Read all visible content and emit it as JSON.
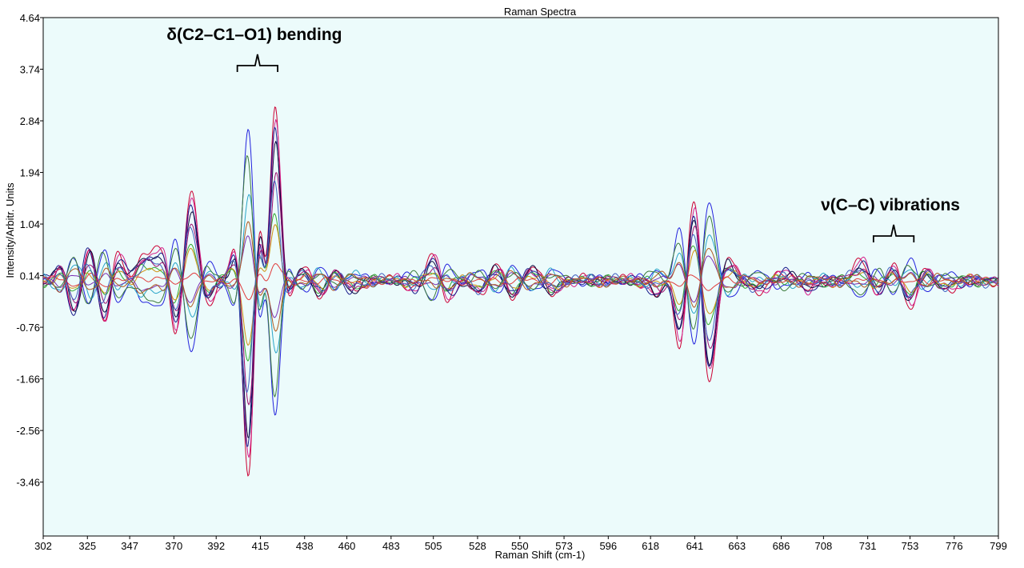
{
  "chart_data": {
    "type": "line",
    "title": "Raman Spectra",
    "xlabel": "Raman Shift (cm-1)",
    "ylabel": "Intensity/Arbitr. Units",
    "xlim": [
      302,
      799
    ],
    "ylim": [
      -4.4,
      4.64
    ],
    "x_ticks": [
      "302",
      "325",
      "347",
      "370",
      "392",
      "415",
      "438",
      "460",
      "483",
      "505",
      "528",
      "550",
      "573",
      "596",
      "618",
      "641",
      "663",
      "686",
      "708",
      "731",
      "753",
      "776",
      "799"
    ],
    "y_ticks": [
      "4.64",
      "3.74",
      "2.84",
      "1.94",
      "1.04",
      "0.14",
      "-0.76",
      "-1.66",
      "-2.56",
      "-3.46"
    ],
    "y_tick_values": [
      4.64,
      3.74,
      2.84,
      1.94,
      1.04,
      0.14,
      -0.76,
      -1.66,
      -2.56,
      -3.46
    ],
    "grid": false,
    "background": "#ecfbfb",
    "annotations": [
      {
        "text": "δ(C2–C1–O1) bending",
        "x_range": [
          403,
          424
        ]
      },
      {
        "text": "ν(C–C) vibrations",
        "x_range": [
          734,
          755
        ]
      }
    ],
    "peaks": [
      {
        "x": 312,
        "w": 3.5,
        "a": 0.35
      },
      {
        "x": 318,
        "w": 3.5,
        "a": -0.7
      },
      {
        "x": 326,
        "w": 3.5,
        "a": 0.65
      },
      {
        "x": 334,
        "w": 3.5,
        "a": -0.8
      },
      {
        "x": 340,
        "w": 3.5,
        "a": 0.5
      },
      {
        "x": 353,
        "w": 3.5,
        "a": 0.3
      },
      {
        "x": 359,
        "w": 3.5,
        "a": 0.3
      },
      {
        "x": 366,
        "w": 3.5,
        "a": 0.6
      },
      {
        "x": 371,
        "w": 3.6,
        "a": -1.15
      },
      {
        "x": 379,
        "w": 3.8,
        "a": 1.55
      },
      {
        "x": 386,
        "w": 3.5,
        "a": -0.5
      },
      {
        "x": 403,
        "w": 2.8,
        "a": 0.8
      },
      {
        "x": 409,
        "w": 3.2,
        "a": -3.6
      },
      {
        "x": 414,
        "w": 3.0,
        "a": 2.0
      },
      {
        "x": 419,
        "w": 2.8,
        "a": -2.1
      },
      {
        "x": 422,
        "w": 3.0,
        "a": 3.8
      },
      {
        "x": 428,
        "w": 3.0,
        "a": -0.4
      },
      {
        "x": 437,
        "w": 3.5,
        "a": 0.2
      },
      {
        "x": 446,
        "w": 3.5,
        "a": -0.25
      },
      {
        "x": 454,
        "w": 3.5,
        "a": 0.2
      },
      {
        "x": 462,
        "w": 3.5,
        "a": -0.2
      },
      {
        "x": 498,
        "w": 4.0,
        "a": -0.2
      },
      {
        "x": 505,
        "w": 4.0,
        "a": 0.55
      },
      {
        "x": 511,
        "w": 4.0,
        "a": -0.35
      },
      {
        "x": 530,
        "w": 4.0,
        "a": -0.25
      },
      {
        "x": 537,
        "w": 4.0,
        "a": 0.3
      },
      {
        "x": 546,
        "w": 4.0,
        "a": -0.3
      },
      {
        "x": 556,
        "w": 4.0,
        "a": 0.25
      },
      {
        "x": 566,
        "w": 4.0,
        "a": -0.2
      },
      {
        "x": 622,
        "w": 3.5,
        "a": -0.3
      },
      {
        "x": 629,
        "w": 3.5,
        "a": 0.5
      },
      {
        "x": 633,
        "w": 3.8,
        "a": -1.4
      },
      {
        "x": 641,
        "w": 3.8,
        "a": 1.7
      },
      {
        "x": 648,
        "w": 3.8,
        "a": -1.9
      },
      {
        "x": 657,
        "w": 3.8,
        "a": 0.4
      },
      {
        "x": 674,
        "w": 4.0,
        "a": -0.15
      },
      {
        "x": 690,
        "w": 4.0,
        "a": 0.15
      },
      {
        "x": 700,
        "w": 4.0,
        "a": -0.15
      },
      {
        "x": 729,
        "w": 4.5,
        "a": 0.35
      },
      {
        "x": 737,
        "w": 4.5,
        "a": -0.35
      },
      {
        "x": 745,
        "w": 4.5,
        "a": 0.45
      },
      {
        "x": 752,
        "w": 4.5,
        "a": -0.55
      },
      {
        "x": 760,
        "w": 4.5,
        "a": 0.25
      },
      {
        "x": 770,
        "w": 4.5,
        "a": -0.15
      }
    ],
    "series": [
      {
        "color": "#cc0033",
        "scale": 1.1,
        "shift": 0.0,
        "noise": 0.07,
        "seed": 1
      },
      {
        "color": "#d61f8a",
        "scale": 1.0,
        "shift": 0.3,
        "noise": 0.08,
        "seed": 2
      },
      {
        "color": "#1a1a8c",
        "scale": 0.95,
        "shift": -0.3,
        "noise": 0.06,
        "seed": 3
      },
      {
        "color": "#2222dd",
        "scale": -0.85,
        "shift": 0.0,
        "noise": 0.06,
        "seed": 4
      },
      {
        "color": "#0a0a40",
        "scale": 0.9,
        "shift": 0.2,
        "noise": 0.05,
        "seed": 5
      },
      {
        "color": "#33aa33",
        "scale": 0.45,
        "shift": -0.2,
        "noise": 0.07,
        "seed": 6
      },
      {
        "color": "#d09010",
        "scale": 0.35,
        "shift": 0.1,
        "noise": 0.06,
        "seed": 7
      },
      {
        "color": "#2aa5c9",
        "scale": -0.5,
        "shift": 0.4,
        "noise": 0.07,
        "seed": 8
      },
      {
        "color": "#7a2fb3",
        "scale": -0.25,
        "shift": -0.1,
        "noise": 0.05,
        "seed": 9
      },
      {
        "color": "#e03b3b",
        "scale": 0.12,
        "shift": 0.0,
        "noise": 0.04,
        "seed": 10
      },
      {
        "color": "#3b7a3b",
        "scale": -0.7,
        "shift": -0.4,
        "noise": 0.05,
        "seed": 11
      },
      {
        "color": "#a01070",
        "scale": 0.7,
        "shift": 0.5,
        "noise": 0.06,
        "seed": 12
      },
      {
        "color": "#4060c0",
        "scale": 0.6,
        "shift": -0.5,
        "noise": 0.07,
        "seed": 13
      },
      {
        "color": "#b05a20",
        "scale": -0.35,
        "shift": 0.2,
        "noise": 0.06,
        "seed": 14
      }
    ]
  }
}
